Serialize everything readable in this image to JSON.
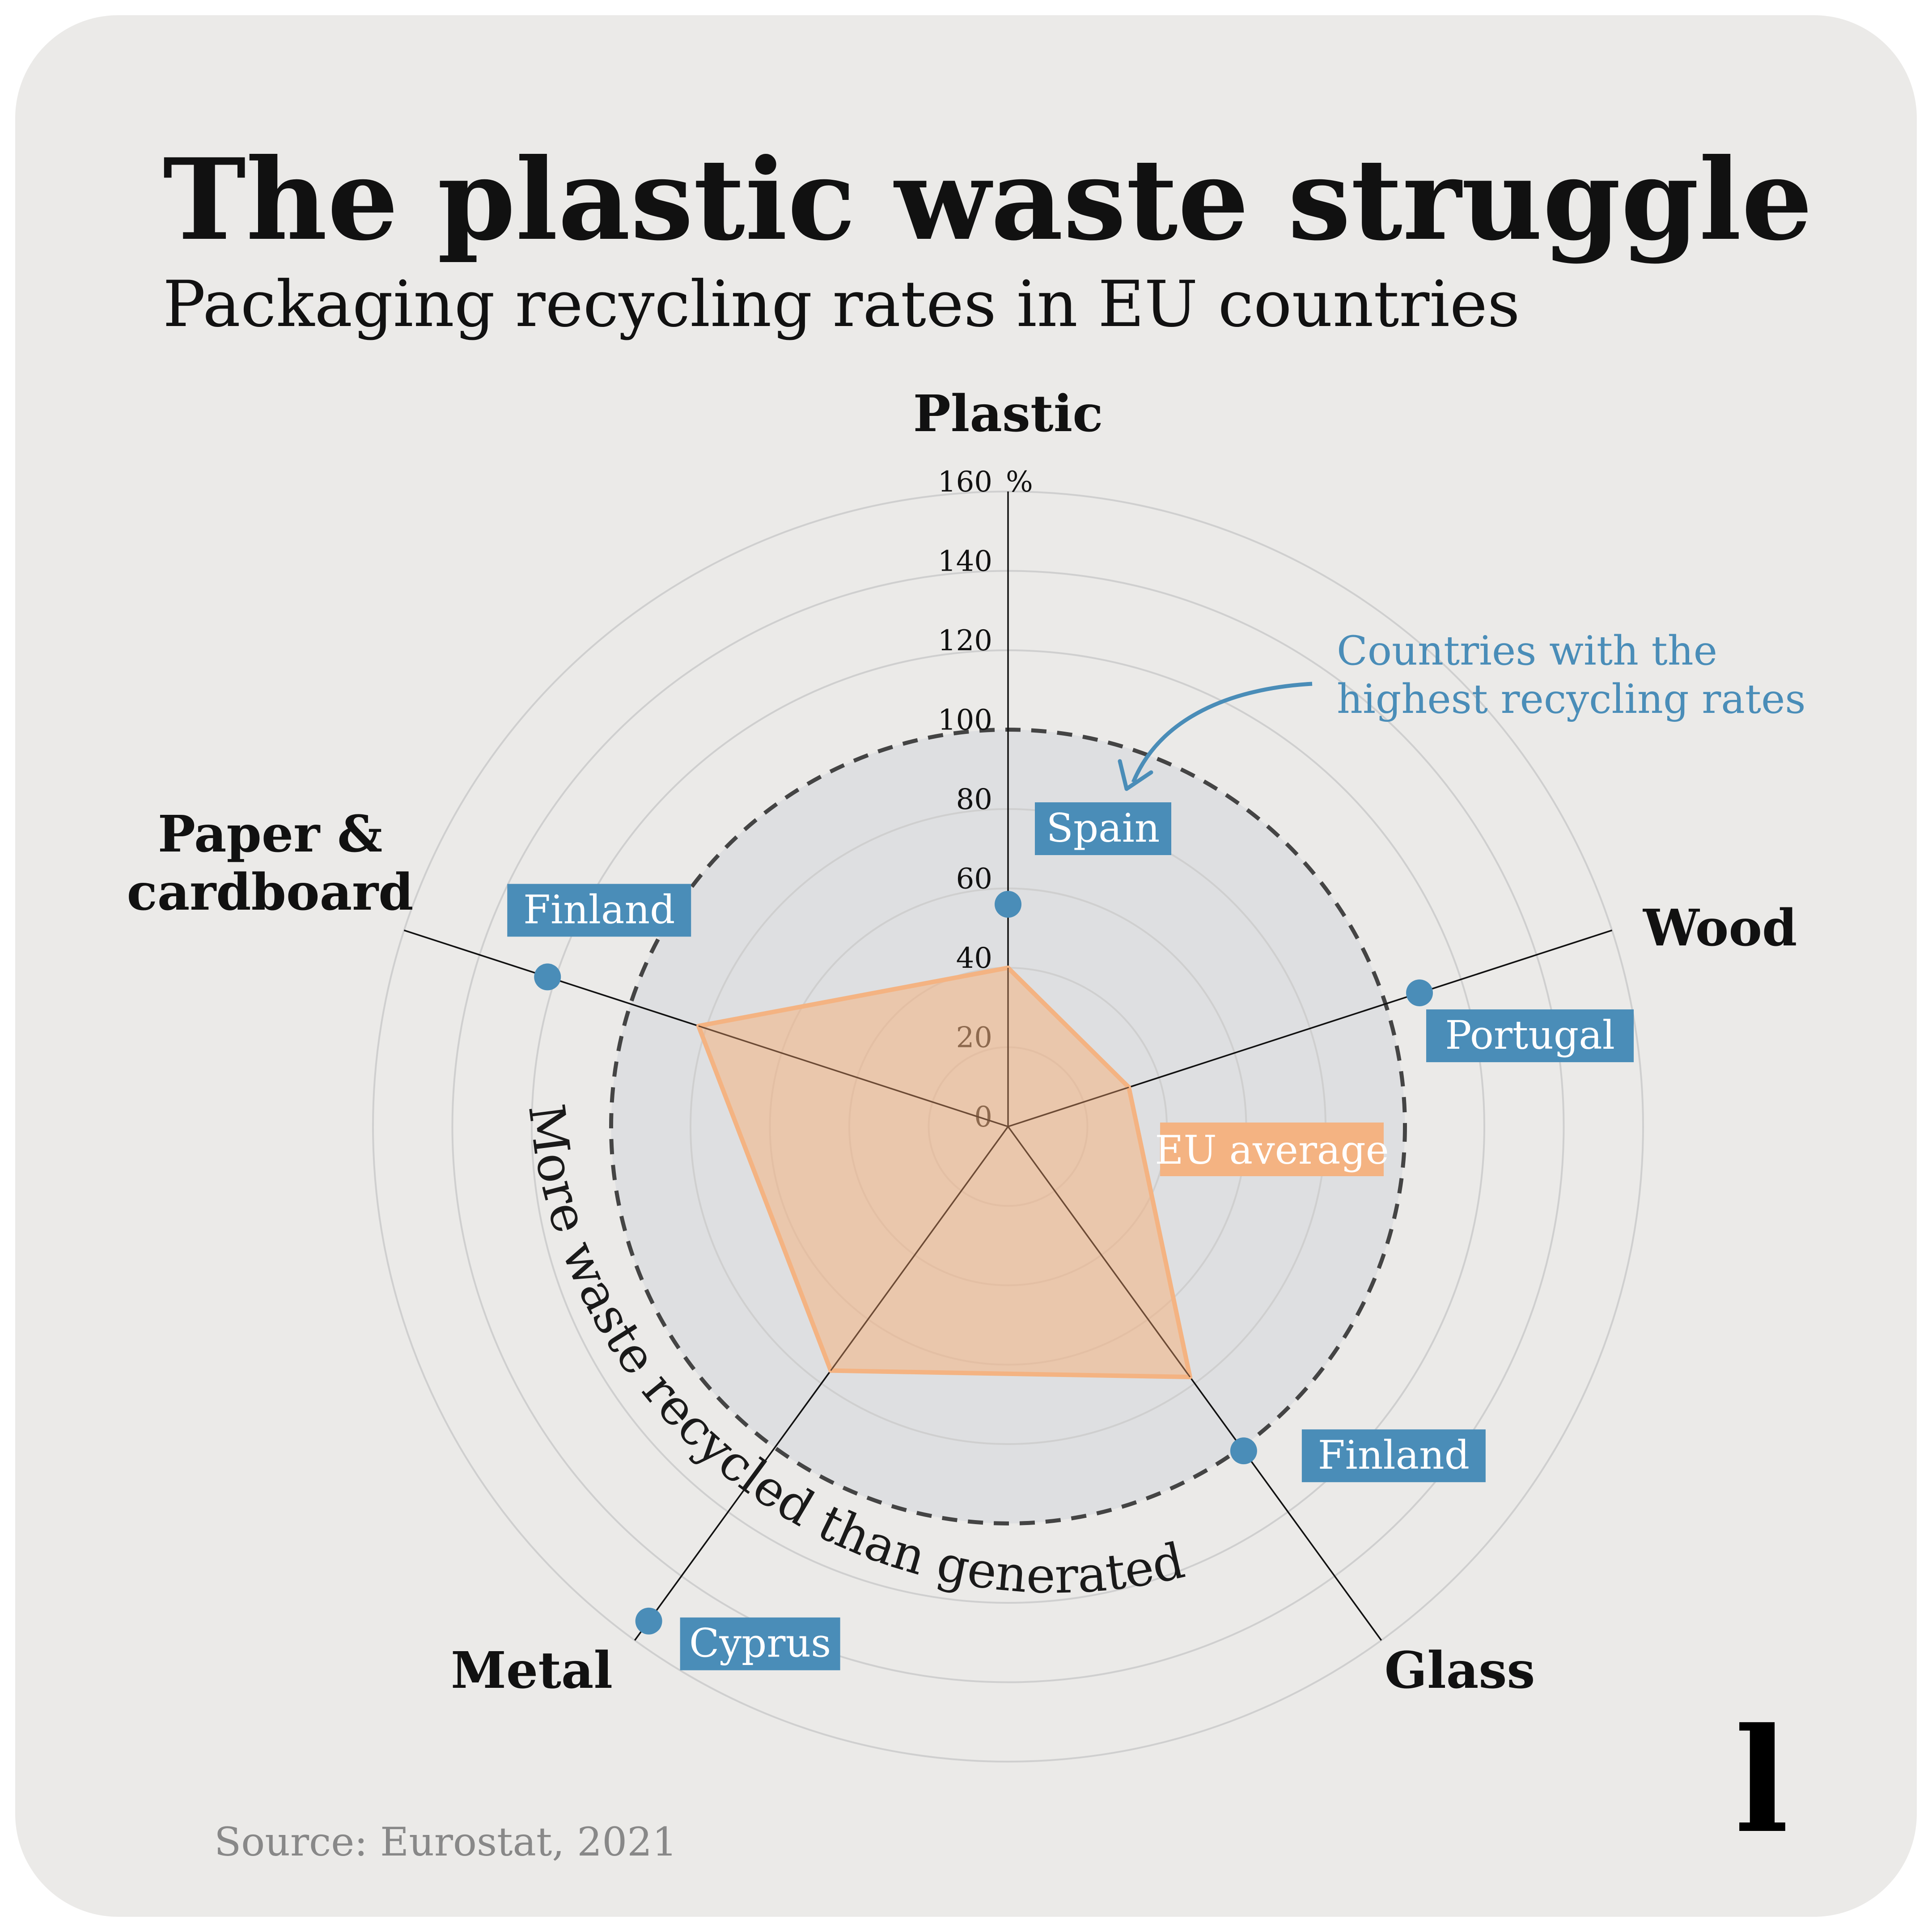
{
  "header": {
    "title": "The plastic waste struggle",
    "subtitle": "Packaging recycling rates in EU countries"
  },
  "annotations": {
    "highest_note_line1": "Countries with the",
    "highest_note_line2": "highest recycling rates",
    "overflow_note": "More waste recycled than generated"
  },
  "footer": {
    "source": "Source: Eurostat, 2021",
    "logo_letter": "l"
  },
  "colors": {
    "background": "#ebeae8",
    "inner_disc": "#dedfe1",
    "eu_average": "#f4b382",
    "highest": "#4a8db8",
    "grid": "#cfcfcf",
    "ink": "#111111"
  },
  "chart_data": {
    "type": "radar",
    "unit": "%",
    "r_ticks": [
      "0",
      "20",
      "40",
      "60",
      "80",
      "100",
      "120",
      "140",
      "160"
    ],
    "r_tick_top_unit": "%",
    "r_max": 160,
    "reference_circle": 100,
    "axes": [
      "Plastic",
      "Wood",
      "Glass",
      "Metal",
      "Paper & cardboard"
    ],
    "axis_label_lines": [
      [
        "Plastic"
      ],
      [
        "Wood"
      ],
      [
        "Glass"
      ],
      [
        "Metal"
      ],
      [
        "Paper &",
        "cardboard"
      ]
    ],
    "series": [
      {
        "name": "EU average",
        "values": [
          40,
          32,
          78,
          76,
          82
        ]
      },
      {
        "name": "Countries with the highest recycling rates",
        "values": [
          56,
          109,
          101,
          154,
          122
        ],
        "countries": [
          "Spain",
          "Portugal",
          "Finland",
          "Cyprus",
          "Finland"
        ]
      }
    ]
  }
}
